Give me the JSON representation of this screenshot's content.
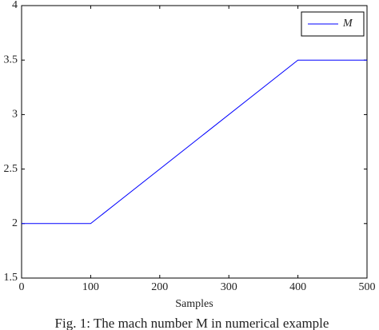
{
  "chart_data": {
    "type": "line",
    "caption": "Fig. 1: The mach number M in numerical example",
    "xlabel": "Samples",
    "x": [
      0,
      100,
      400,
      500
    ],
    "series": [
      {
        "name": "M",
        "color": "#0000ff",
        "values": [
          2,
          2,
          3.5,
          3.5
        ]
      }
    ],
    "xlim": [
      0,
      500
    ],
    "xticks": [
      0,
      100,
      200,
      300,
      400,
      500
    ],
    "ylim": [
      1.5,
      4
    ],
    "yticks": [
      1.5,
      2,
      2.5,
      3,
      3.5,
      4
    ],
    "grid": false,
    "legend": "upper right"
  }
}
